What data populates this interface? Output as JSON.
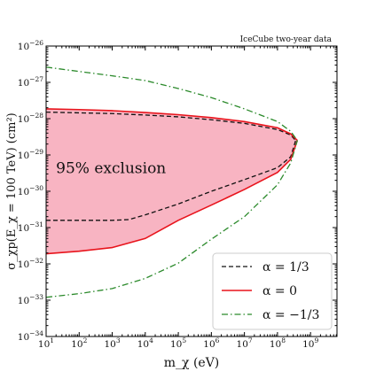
{
  "chart_data": {
    "type": "area",
    "title": "IceCube two-year data",
    "xlabel": "m_χ (eV)",
    "ylabel": "σ_χp(E_χ = 100 TeV) (cm²)",
    "x_scale": "log",
    "y_scale": "log",
    "xlim_exp": [
      1,
      9.8
    ],
    "ylim_exp": [
      -34,
      -26
    ],
    "x_tick_exponents": [
      1,
      2,
      3,
      4,
      5,
      6,
      7,
      8,
      9
    ],
    "y_tick_exponents": [
      -34,
      -33,
      -32,
      -31,
      -30,
      -29,
      -28,
      -27,
      -26
    ],
    "annotation": "95% exclusion",
    "legend_position": "bottom-right",
    "series": [
      {
        "name": "α = 1/3",
        "line_style": "dashed",
        "color": "#111111",
        "upper": [
          [
            1,
            -27.82
          ],
          [
            2,
            -27.84
          ],
          [
            3,
            -27.86
          ],
          [
            4,
            -27.9
          ],
          [
            5,
            -27.95
          ],
          [
            6,
            -28.03
          ],
          [
            7,
            -28.13
          ],
          [
            8,
            -28.3
          ],
          [
            8.4,
            -28.45
          ],
          [
            8.55,
            -28.6
          ]
        ],
        "lower": [
          [
            1,
            -30.8
          ],
          [
            2,
            -30.8
          ],
          [
            3,
            -30.8
          ],
          [
            3.5,
            -30.78
          ],
          [
            4,
            -30.65
          ],
          [
            5,
            -30.35
          ],
          [
            6,
            -30
          ],
          [
            7,
            -29.68
          ],
          [
            8,
            -29.35
          ],
          [
            8.4,
            -29.05
          ],
          [
            8.55,
            -28.6
          ]
        ]
      },
      {
        "name": "α = 0",
        "line_style": "solid",
        "color": "#e8141c",
        "fill": "#f8b4c2",
        "upper": [
          [
            1,
            -27.73
          ],
          [
            2,
            -27.75
          ],
          [
            3,
            -27.78
          ],
          [
            4,
            -27.83
          ],
          [
            5,
            -27.89
          ],
          [
            6,
            -27.97
          ],
          [
            7,
            -28.08
          ],
          [
            8,
            -28.25
          ],
          [
            8.4,
            -28.42
          ],
          [
            8.6,
            -28.6
          ]
        ],
        "lower": [
          [
            1,
            -31.72
          ],
          [
            2,
            -31.65
          ],
          [
            3,
            -31.55
          ],
          [
            4,
            -31.3
          ],
          [
            4.5,
            -31.05
          ],
          [
            5,
            -30.8
          ],
          [
            6,
            -30.38
          ],
          [
            7,
            -29.95
          ],
          [
            8,
            -29.48
          ],
          [
            8.4,
            -29.12
          ],
          [
            8.6,
            -28.6
          ]
        ]
      },
      {
        "name": "α = −1/3",
        "line_style": "dashdot",
        "color": "#2b8a2b",
        "upper": [
          [
            1,
            -26.58
          ],
          [
            2,
            -26.7
          ],
          [
            3,
            -26.82
          ],
          [
            4,
            -26.95
          ],
          [
            5,
            -27.17
          ],
          [
            6,
            -27.42
          ],
          [
            7,
            -27.73
          ],
          [
            8,
            -28.08
          ],
          [
            8.4,
            -28.35
          ],
          [
            8.6,
            -28.6
          ]
        ],
        "lower": [
          [
            1,
            -32.92
          ],
          [
            2,
            -32.82
          ],
          [
            3,
            -32.68
          ],
          [
            4,
            -32.4
          ],
          [
            5,
            -31.98
          ],
          [
            6,
            -31.32
          ],
          [
            7,
            -30.7
          ],
          [
            8,
            -29.82
          ],
          [
            8.4,
            -29.22
          ],
          [
            8.6,
            -28.6
          ]
        ]
      }
    ]
  }
}
